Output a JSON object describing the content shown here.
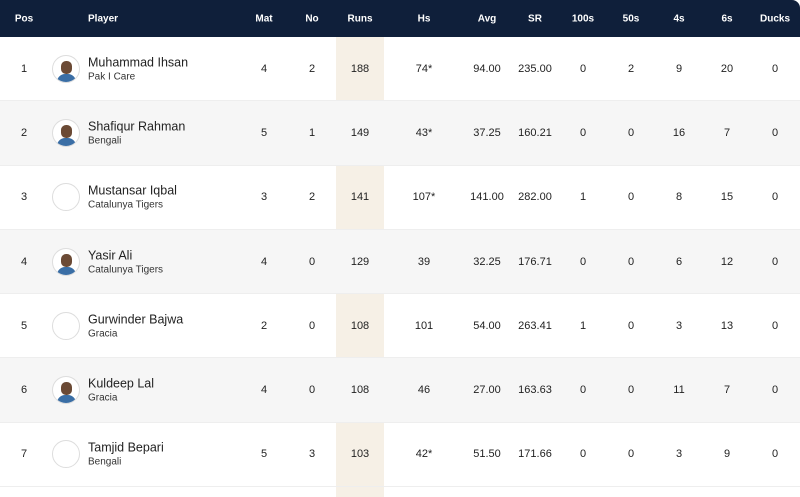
{
  "columns": [
    "Pos",
    "Player",
    "Mat",
    "No",
    "Runs",
    "Hs",
    "Avg",
    "SR",
    "100s",
    "50s",
    "4s",
    "6s",
    "Ducks"
  ],
  "rows": [
    {
      "pos": "1",
      "name": "Muhammad Ihsan",
      "team": "Pak I Care",
      "photo": true,
      "mat": "4",
      "no": "2",
      "runs": "188",
      "hs": "74*",
      "avg": "94.00",
      "sr": "235.00",
      "h": "0",
      "f": "2",
      "fours": "9",
      "sixes": "20",
      "ducks": "0"
    },
    {
      "pos": "2",
      "name": "Shafiqur Rahman",
      "team": "Bengali",
      "photo": true,
      "mat": "5",
      "no": "1",
      "runs": "149",
      "hs": "43*",
      "avg": "37.25",
      "sr": "160.21",
      "h": "0",
      "f": "0",
      "fours": "16",
      "sixes": "7",
      "ducks": "0"
    },
    {
      "pos": "3",
      "name": "Mustansar Iqbal",
      "team": "Catalunya Tigers",
      "photo": false,
      "mat": "3",
      "no": "2",
      "runs": "141",
      "hs": "107*",
      "avg": "141.00",
      "sr": "282.00",
      "h": "1",
      "f": "0",
      "fours": "8",
      "sixes": "15",
      "ducks": "0"
    },
    {
      "pos": "4",
      "name": "Yasir Ali",
      "team": "Catalunya Tigers",
      "photo": true,
      "mat": "4",
      "no": "0",
      "runs": "129",
      "hs": "39",
      "avg": "32.25",
      "sr": "176.71",
      "h": "0",
      "f": "0",
      "fours": "6",
      "sixes": "12",
      "ducks": "0"
    },
    {
      "pos": "5",
      "name": "Gurwinder Bajwa",
      "team": "Gracia",
      "photo": false,
      "mat": "2",
      "no": "0",
      "runs": "108",
      "hs": "101",
      "avg": "54.00",
      "sr": "263.41",
      "h": "1",
      "f": "0",
      "fours": "3",
      "sixes": "13",
      "ducks": "0"
    },
    {
      "pos": "6",
      "name": "Kuldeep Lal",
      "team": "Gracia",
      "photo": true,
      "mat": "4",
      "no": "0",
      "runs": "108",
      "hs": "46",
      "avg": "27.00",
      "sr": "163.63",
      "h": "0",
      "f": "0",
      "fours": "11",
      "sixes": "7",
      "ducks": "0"
    },
    {
      "pos": "7",
      "name": "Tamjid Bepari",
      "team": "Bengali",
      "photo": false,
      "mat": "5",
      "no": "3",
      "runs": "103",
      "hs": "42*",
      "avg": "51.50",
      "sr": "171.66",
      "h": "0",
      "f": "0",
      "fours": "3",
      "sixes": "9",
      "ducks": "0"
    }
  ],
  "colors": {
    "header": "#0f1f3a",
    "runs_highlight": "#f6f0e6",
    "alt_row": "#f6f6f6"
  }
}
